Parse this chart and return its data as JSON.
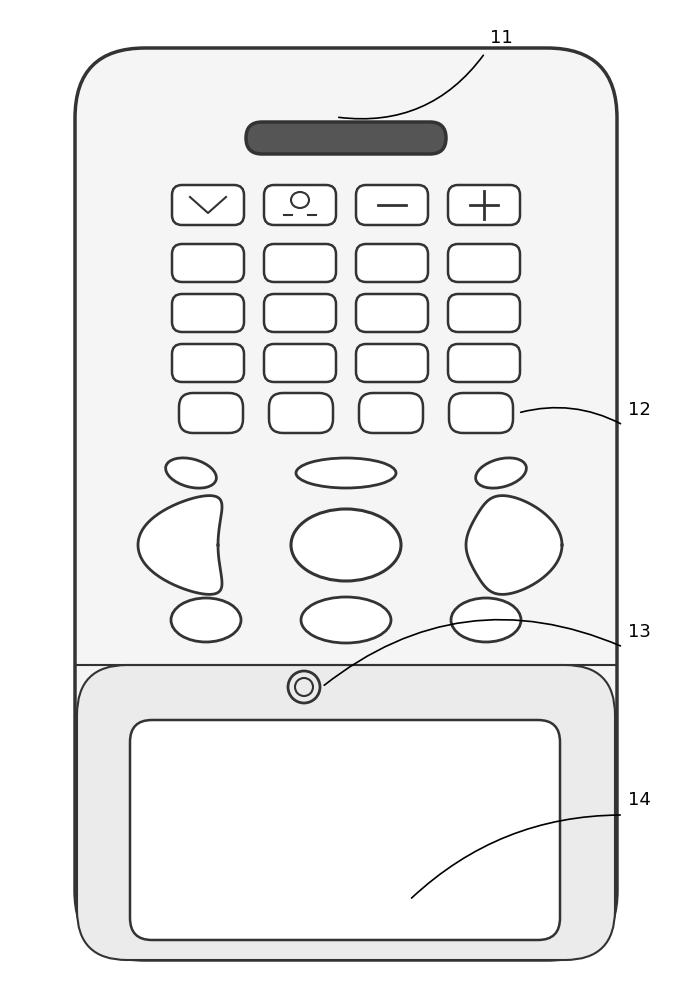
{
  "bg_color": "#ffffff",
  "outline_color": "#333333",
  "body_color": "#f0f0f0",
  "lw_body": 2.5,
  "lw_btn": 1.8,
  "lw_nav": 2.0
}
